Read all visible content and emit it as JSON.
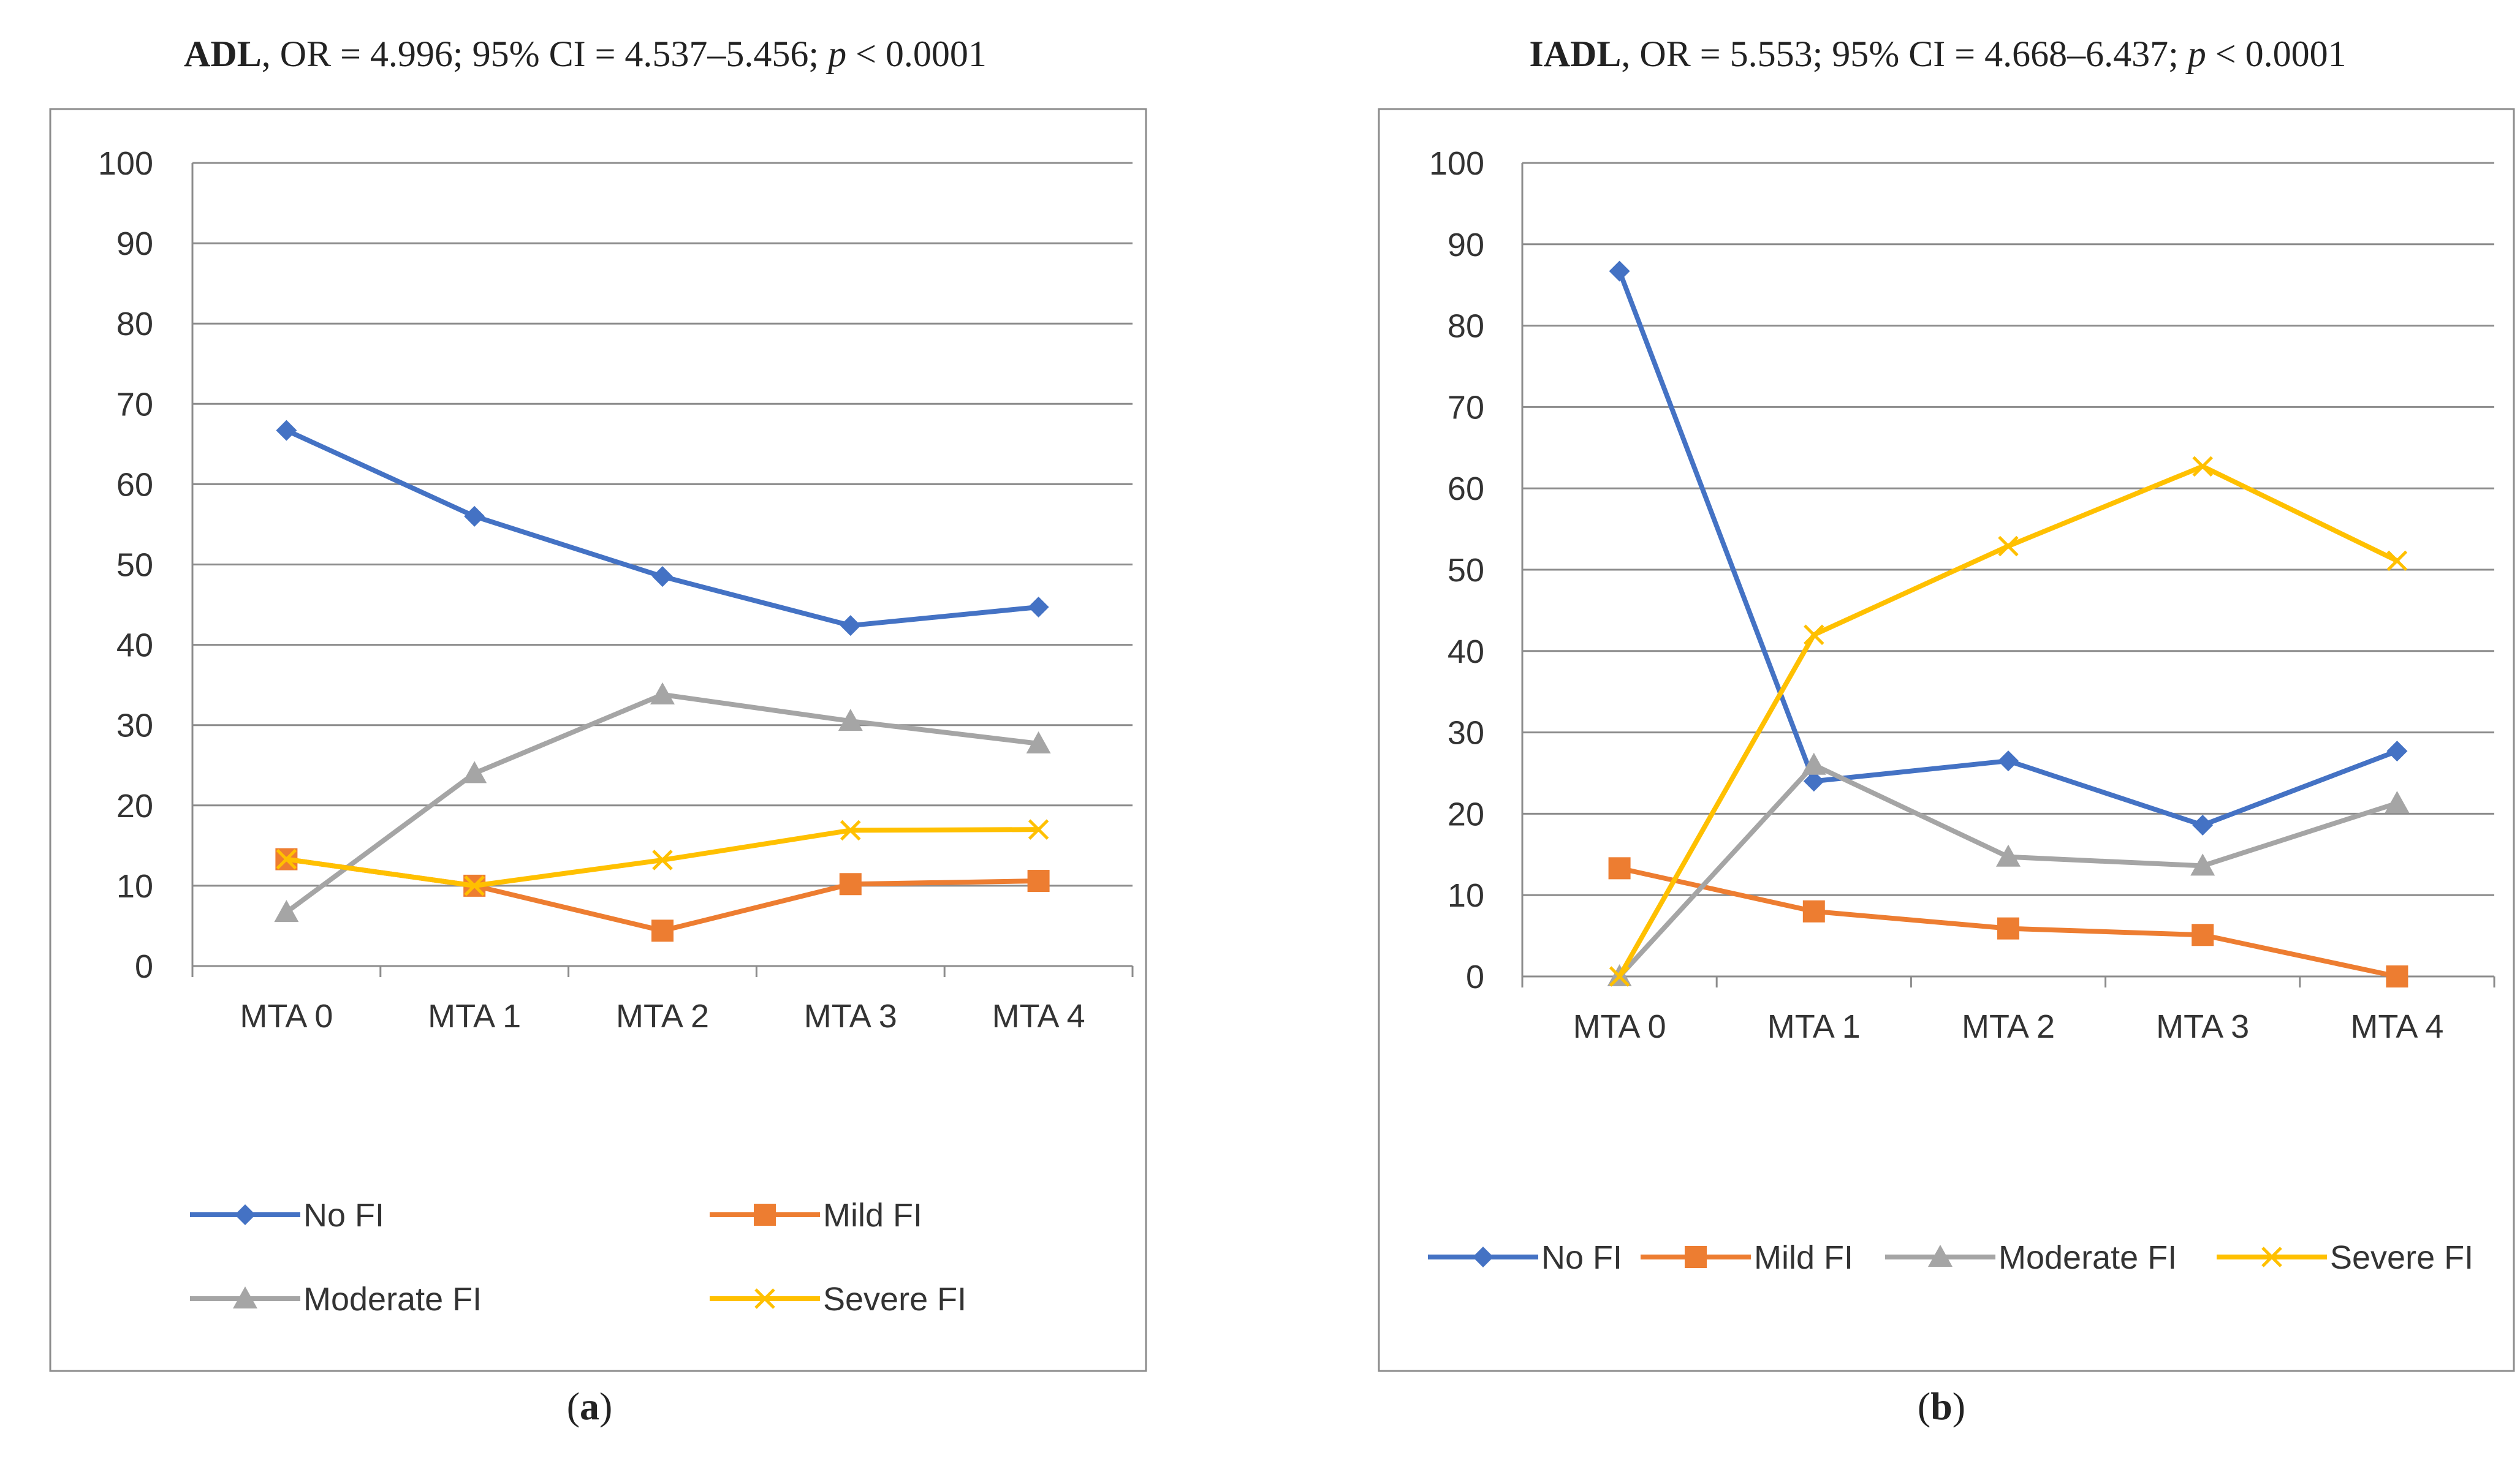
{
  "colors": {
    "No FI": "#4472C4",
    "Mild FI": "#ED7D31",
    "Moderate FI": "#A5A5A5",
    "Severe FI": "#FFC000",
    "grid": "#8c8c8c",
    "frame": "#8c8c8c"
  },
  "chart_data": [
    {
      "type": "line",
      "panel_label": "a",
      "title": {
        "measure": "ADL",
        "stats": ", OR = 4.996; 95% CI = 4.537–5.456; ",
        "p_symbol": "p",
        "p_value": " < 0.0001"
      },
      "categories": [
        "MTA 0",
        "MTA 1",
        "MTA 2",
        "MTA 3",
        "MTA 4"
      ],
      "ylim": [
        0,
        100
      ],
      "yticks": [
        0,
        10,
        20,
        30,
        40,
        50,
        60,
        70,
        80,
        90,
        100
      ],
      "grid": true,
      "legend_position": "bottom",
      "series": [
        {
          "name": "No FI",
          "marker": "diamond",
          "values": [
            66.7,
            56.0,
            48.5,
            42.4,
            44.7
          ]
        },
        {
          "name": "Mild FI",
          "marker": "square",
          "values": [
            13.3,
            10.0,
            4.4,
            10.2,
            10.6
          ]
        },
        {
          "name": "Moderate FI",
          "marker": "triangle",
          "values": [
            6.7,
            24.0,
            33.8,
            30.5,
            27.7
          ]
        },
        {
          "name": "Severe FI",
          "marker": "x",
          "values": [
            13.3,
            10.0,
            13.2,
            16.9,
            17.0
          ]
        }
      ]
    },
    {
      "type": "line",
      "panel_label": "b",
      "title": {
        "measure": "IADL",
        "stats": ", OR = 5.553; 95% CI = 4.668–6.437; ",
        "p_symbol": "p",
        "p_value": " < 0.0001"
      },
      "categories": [
        "MTA 0",
        "MTA 1",
        "MTA 2",
        "MTA 3",
        "MTA 4"
      ],
      "ylim": [
        0,
        100
      ],
      "yticks": [
        0,
        10,
        20,
        30,
        40,
        50,
        60,
        70,
        80,
        90,
        100
      ],
      "grid": true,
      "legend_position": "bottom",
      "series": [
        {
          "name": "No FI",
          "marker": "diamond",
          "values": [
            86.7,
            24.0,
            26.5,
            18.6,
            27.7
          ]
        },
        {
          "name": "Mild FI",
          "marker": "square",
          "values": [
            13.3,
            8.0,
            5.9,
            5.1,
            0.0
          ]
        },
        {
          "name": "Moderate FI",
          "marker": "triangle",
          "values": [
            0.0,
            26.0,
            14.7,
            13.6,
            21.3
          ]
        },
        {
          "name": "Severe FI",
          "marker": "x",
          "values": [
            0.0,
            42.0,
            52.9,
            62.7,
            51.1
          ]
        }
      ]
    }
  ]
}
